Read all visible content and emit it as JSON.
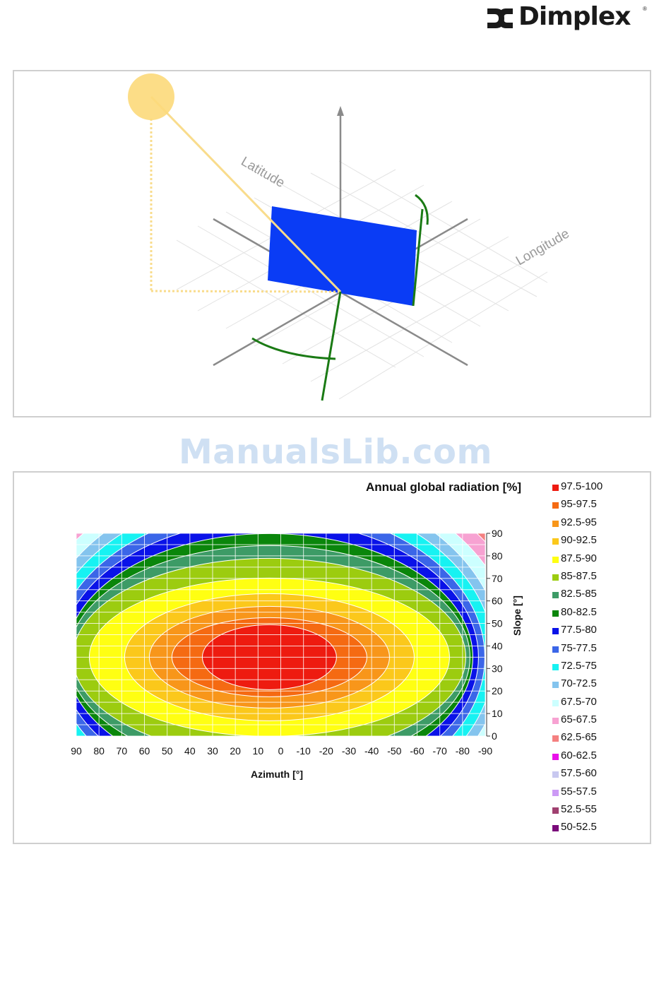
{
  "brand": {
    "name": "Dimplex",
    "trademark": "®"
  },
  "watermark": "ManualsLib.com",
  "diagram": {
    "axis_labels": {
      "latitude": "Latitude",
      "longitude": "Longitude"
    }
  },
  "chart_data": {
    "type": "heatmap",
    "title": "Annual global radiation [%]",
    "xlabel": "Azimuth [°]",
    "ylabel": "Slope [°]",
    "x": [
      90,
      80,
      70,
      60,
      50,
      40,
      30,
      20,
      10,
      0,
      -10,
      -20,
      -30,
      -40,
      -50,
      -60,
      -70,
      -80,
      -90
    ],
    "y_ticks": [
      0,
      10,
      20,
      30,
      40,
      50,
      60,
      70,
      80,
      90
    ],
    "xlim": [
      90,
      -90
    ],
    "ylim": [
      0,
      90
    ],
    "grid": true,
    "legend_position": "right",
    "legend": [
      {
        "label": "97.5-100",
        "color": "#ee1b10"
      },
      {
        "label": "95-97.5",
        "color": "#f56a12"
      },
      {
        "label": "92.5-95",
        "color": "#f8961a"
      },
      {
        "label": "90-92.5",
        "color": "#fbc81b"
      },
      {
        "label": "87.5-90",
        "color": "#ffff12"
      },
      {
        "label": "85-87.5",
        "color": "#9ccc0f"
      },
      {
        "label": "82.5-85",
        "color": "#3d9b66"
      },
      {
        "label": "80-82.5",
        "color": "#0a860b"
      },
      {
        "label": "77.5-80",
        "color": "#0a12e8"
      },
      {
        "label": "75-77.5",
        "color": "#3b66e8"
      },
      {
        "label": "72.5-75",
        "color": "#17f2f2"
      },
      {
        "label": "70-72.5",
        "color": "#84c4ee"
      },
      {
        "label": "67.5-70",
        "color": "#ccffff"
      },
      {
        "label": "65-67.5",
        "color": "#f7a2d2"
      },
      {
        "label": "62.5-65",
        "color": "#f48080"
      },
      {
        "label": "60-62.5",
        "color": "#ea10ea"
      },
      {
        "label": "57.5-60",
        "color": "#c8c8f0"
      },
      {
        "label": "55-57.5",
        "color": "#cc9af5"
      },
      {
        "label": "52.5-55",
        "color": "#a04070"
      },
      {
        "label": "50-52.5",
        "color": "#7a0a7a"
      }
    ]
  }
}
